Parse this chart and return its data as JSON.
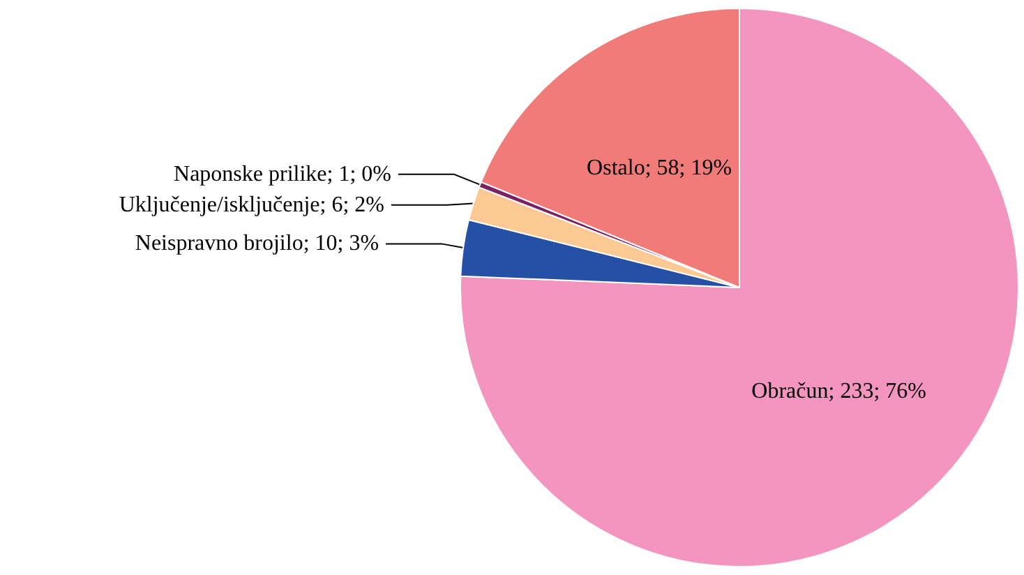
{
  "chart_data": {
    "type": "pie",
    "categories": [
      "Obračun",
      "Neispravno brojilo",
      "Uključenje/isključenje",
      "Naponske prilike",
      "Ostalo"
    ],
    "values": [
      233,
      10,
      6,
      1,
      58
    ],
    "colors": [
      "#f495c0",
      "#2550a6",
      "#fcc995",
      "#7b2161",
      "#f07b78"
    ],
    "value_labels": [
      "233; 76%",
      "10; 3%",
      "6; 2%",
      "1; 0%",
      "58; 19%"
    ],
    "legend": false
  }
}
